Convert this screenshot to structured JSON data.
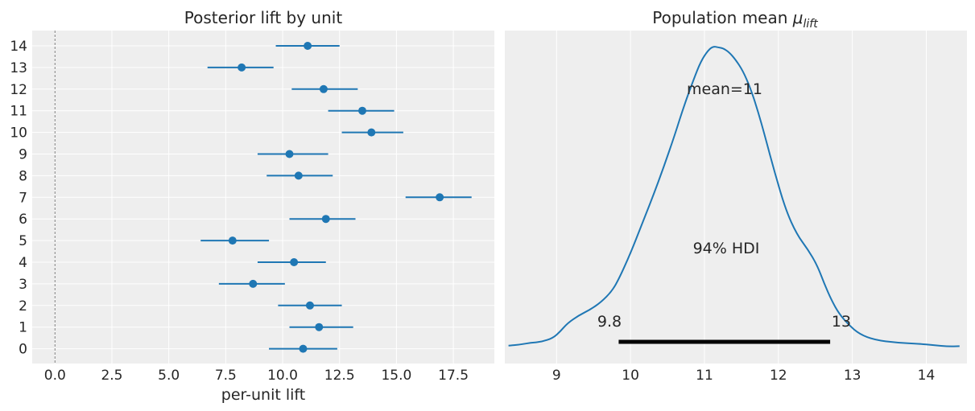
{
  "colors": {
    "panel_bg": "#eeeeee",
    "grid": "#ffffff",
    "series": "#1f77b4",
    "hdi_bar": "#000000",
    "ref_line": "#808080",
    "text": "#262626"
  },
  "chart_data": [
    {
      "type": "forest",
      "title": "Posterior lift by unit",
      "xlabel": "per-unit lift",
      "ylabel": "",
      "xlim": [
        -1.0,
        19.3
      ],
      "xticks": [
        0.0,
        2.5,
        5.0,
        7.5,
        10.0,
        12.5,
        15.0,
        17.5
      ],
      "xtick_labels": [
        "0.0",
        "2.5",
        "5.0",
        "7.5",
        "10.0",
        "12.5",
        "15.0",
        "17.5"
      ],
      "reference_line_x": 0.0,
      "grid": true,
      "units": [
        {
          "label": "14",
          "mean": 11.1,
          "lo": 9.7,
          "hi": 12.5
        },
        {
          "label": "13",
          "mean": 8.2,
          "lo": 6.7,
          "hi": 9.6
        },
        {
          "label": "12",
          "mean": 11.8,
          "lo": 10.4,
          "hi": 13.3
        },
        {
          "label": "11",
          "mean": 13.5,
          "lo": 12.0,
          "hi": 14.9
        },
        {
          "label": "10",
          "mean": 13.9,
          "lo": 12.6,
          "hi": 15.3
        },
        {
          "label": "9",
          "mean": 10.3,
          "lo": 8.9,
          "hi": 12.0
        },
        {
          "label": "8",
          "mean": 10.7,
          "lo": 9.3,
          "hi": 12.2
        },
        {
          "label": "7",
          "mean": 16.9,
          "lo": 15.4,
          "hi": 18.3
        },
        {
          "label": "6",
          "mean": 11.9,
          "lo": 10.3,
          "hi": 13.2
        },
        {
          "label": "5",
          "mean": 7.8,
          "lo": 6.4,
          "hi": 9.4
        },
        {
          "label": "4",
          "mean": 10.5,
          "lo": 8.9,
          "hi": 11.9
        },
        {
          "label": "3",
          "mean": 8.7,
          "lo": 7.2,
          "hi": 10.1
        },
        {
          "label": "2",
          "mean": 11.2,
          "lo": 9.8,
          "hi": 12.6
        },
        {
          "label": "1",
          "mean": 11.6,
          "lo": 10.3,
          "hi": 13.1
        },
        {
          "label": "0",
          "mean": 10.9,
          "lo": 9.4,
          "hi": 12.4
        }
      ]
    },
    {
      "type": "density",
      "title_text": "Population mean ",
      "title_symbol": "μ",
      "title_subscript": "lift",
      "xlim": [
        8.3,
        14.55
      ],
      "xticks": [
        9,
        10,
        11,
        12,
        13,
        14
      ],
      "xtick_labels": [
        "9",
        "10",
        "11",
        "12",
        "13",
        "14"
      ],
      "grid": true,
      "curve": {
        "x": [
          8.35,
          8.5,
          8.65,
          8.8,
          8.95,
          9.05,
          9.15,
          9.3,
          9.45,
          9.6,
          9.75,
          9.85,
          10.0,
          10.15,
          10.3,
          10.45,
          10.6,
          10.72,
          10.85,
          10.95,
          11.05,
          11.12,
          11.18,
          11.25,
          11.33,
          11.42,
          11.52,
          11.62,
          11.72,
          11.82,
          11.95,
          12.1,
          12.25,
          12.4,
          12.52,
          12.62,
          12.72,
          12.82,
          12.95,
          13.1,
          13.3,
          13.6,
          13.9,
          14.1,
          14.3,
          14.45
        ],
        "y": [
          0.01,
          0.015,
          0.025,
          0.03,
          0.05,
          0.085,
          0.13,
          0.17,
          0.2,
          0.24,
          0.3,
          0.37,
          0.5,
          0.65,
          0.8,
          0.96,
          1.13,
          1.28,
          1.42,
          1.52,
          1.58,
          1.6,
          1.595,
          1.59,
          1.57,
          1.53,
          1.47,
          1.38,
          1.26,
          1.12,
          0.93,
          0.73,
          0.6,
          0.52,
          0.44,
          0.34,
          0.25,
          0.18,
          0.12,
          0.07,
          0.04,
          0.025,
          0.02,
          0.012,
          0.005,
          0.007
        ]
      },
      "mean_label": "mean=11",
      "hdi_label": "94% HDI",
      "hdi": {
        "lo": 9.84,
        "hi": 12.7,
        "lo_label": "9.8",
        "hi_label": "13"
      }
    }
  ]
}
